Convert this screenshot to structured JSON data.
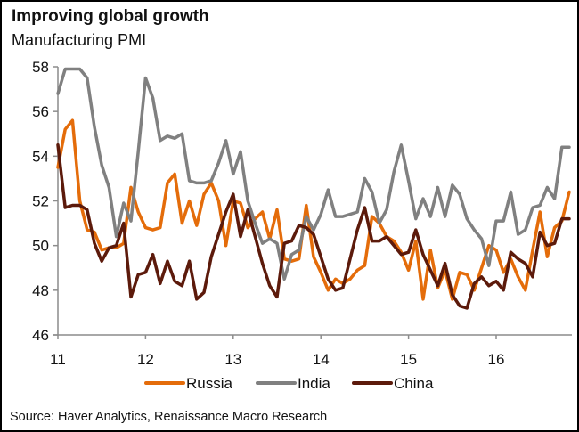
{
  "chart_data": {
    "type": "line",
    "title": "Improving global growth",
    "subtitle": "Manufacturing PMI",
    "xlabel": "",
    "ylabel": "",
    "ylim": [
      46,
      58
    ],
    "yticks": [
      "46",
      "48",
      "50",
      "52",
      "54",
      "56",
      "58"
    ],
    "xticks": [
      "11",
      "12",
      "13",
      "14",
      "15",
      "16"
    ],
    "x_start": "Jan 2011",
    "x_frequency": "monthly",
    "grid": false,
    "legend_position": "bottom",
    "series": [
      {
        "name": "Russia",
        "color": "#E46C0A",
        "values": [
          53.5,
          55.2,
          55.6,
          52.0,
          50.7,
          50.6,
          49.8,
          49.9,
          49.9,
          50.1,
          52.6,
          51.5,
          50.8,
          50.7,
          50.8,
          52.8,
          53.2,
          51.0,
          52.0,
          50.9,
          52.3,
          52.8,
          52.0,
          50.0,
          52.0,
          51.9,
          50.8,
          51.2,
          51.5,
          50.3,
          51.6,
          49.4,
          49.3,
          49.4,
          51.8,
          49.5,
          48.8,
          48.0,
          48.5,
          48.3,
          48.5,
          48.9,
          49.1,
          51.3,
          51.0,
          50.4,
          50.2,
          49.7,
          48.9,
          50.2,
          47.6,
          49.8,
          48.1,
          48.9,
          47.6,
          48.8,
          48.7,
          48.0,
          49.0,
          50.0,
          49.8,
          48.8,
          49.4,
          48.6,
          48.0,
          49.8,
          51.5,
          49.5,
          50.8,
          51.1,
          52.4
        ],
        "chart_values_note": "approximate, read from plot"
      },
      {
        "name": "India",
        "color": "#808080",
        "values": [
          56.8,
          57.9,
          57.9,
          57.9,
          57.5,
          55.3,
          53.6,
          52.6,
          50.4,
          51.9,
          51.1,
          54.2,
          57.5,
          56.6,
          54.7,
          54.9,
          54.8,
          55.0,
          52.9,
          52.8,
          52.8,
          52.9,
          53.7,
          54.7,
          53.2,
          54.2,
          52.0,
          51.0,
          50.1,
          50.3,
          50.1,
          48.5,
          49.6,
          49.8,
          51.3,
          50.7,
          51.4,
          52.5,
          51.3,
          51.3,
          51.4,
          51.5,
          53.0,
          52.4,
          51.0,
          51.6,
          53.3,
          54.5,
          52.9,
          51.2,
          52.1,
          51.3,
          52.6,
          51.3,
          52.7,
          52.3,
          51.2,
          50.7,
          50.3,
          49.1,
          51.1,
          51.1,
          52.4,
          50.5,
          50.7,
          51.7,
          51.8,
          52.6,
          52.1,
          54.4,
          54.4
        ],
        "chart_values_note": "approximate, read from plot"
      },
      {
        "name": "China",
        "color": "#5C1A0B",
        "values": [
          54.5,
          51.7,
          51.8,
          51.8,
          51.6,
          50.1,
          49.3,
          49.9,
          50.0,
          51.0,
          47.7,
          48.7,
          48.8,
          49.6,
          48.3,
          49.3,
          48.4,
          48.2,
          49.3,
          47.6,
          47.9,
          49.5,
          50.5,
          51.5,
          52.3,
          50.4,
          51.6,
          50.4,
          49.2,
          48.2,
          47.7,
          50.1,
          50.2,
          50.9,
          50.8,
          50.5,
          49.5,
          48.5,
          48.0,
          48.1,
          49.4,
          50.7,
          51.7,
          50.2,
          50.2,
          50.4,
          50.0,
          49.6,
          49.7,
          50.7,
          49.6,
          48.9,
          48.2,
          49.2,
          47.8,
          47.3,
          47.2,
          48.3,
          48.6,
          48.2,
          48.4,
          48.0,
          49.7,
          49.4,
          49.2,
          48.6,
          50.6,
          50.0,
          50.1,
          51.2,
          51.2
        ],
        "chart_values_note": "approximate, read from plot"
      }
    ],
    "source": "Source: Haver Analytics, Renaissance Macro Research"
  }
}
